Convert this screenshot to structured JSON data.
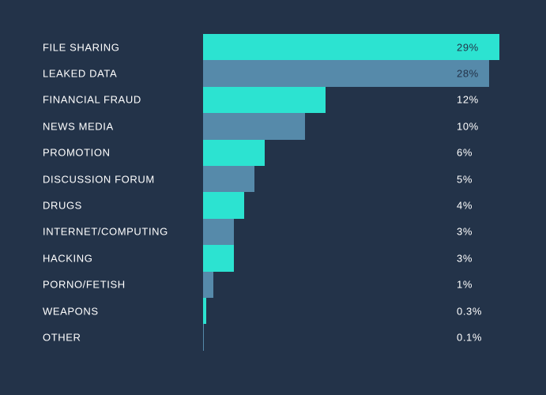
{
  "colors": {
    "background": "#233349",
    "teal": "#2CE3D1",
    "blue": "#568AAA",
    "category_text": "#FFFFFF",
    "value_text_on_bar": "#233349",
    "value_text_off_bar": "#FFFFFF"
  },
  "chart_data": {
    "type": "bar",
    "orientation": "horizontal",
    "categories": [
      "FILE SHARING",
      "LEAKED DATA",
      "FINANCIAL FRAUD",
      "NEWS MEDIA",
      "PROMOTION",
      "DISCUSSION FORUM",
      "DRUGS",
      "INTERNET/COMPUTING",
      "HACKING",
      "PORNO/FETISH",
      "WEAPONS",
      "OTHER"
    ],
    "values": [
      29,
      28,
      12,
      10,
      6,
      5,
      4,
      3,
      3,
      1,
      0.3,
      0.1
    ],
    "value_labels": [
      "29%",
      "28%",
      "12%",
      "10%",
      "6%",
      "5%",
      "4%",
      "3%",
      "3%",
      "1%",
      "0.3%",
      "0.1%"
    ],
    "unit": "%",
    "xlim": [
      0,
      29
    ],
    "grid": false,
    "legend": false,
    "bar_color_pattern": [
      "#2CE3D1",
      "#568AAA"
    ]
  }
}
